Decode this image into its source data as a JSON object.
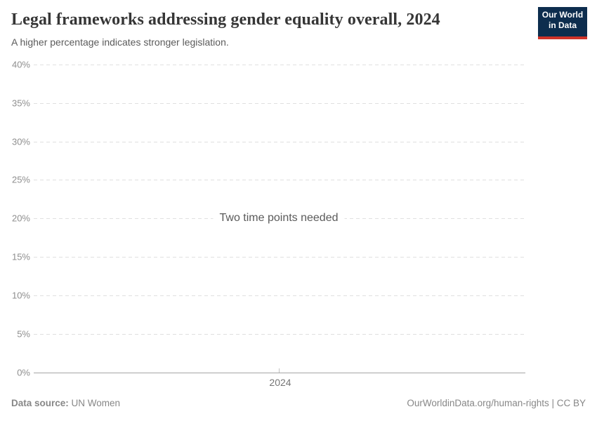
{
  "header": {
    "title": "Legal frameworks addressing gender equality overall, 2024",
    "subtitle": "A higher percentage indicates stronger legislation.",
    "logo": {
      "line1": "Our World",
      "line2": "in Data"
    }
  },
  "chart_data": {
    "type": "line",
    "title": "Legal frameworks addressing gender equality overall, 2024",
    "subtitle": "A higher percentage indicates stronger legislation.",
    "series": [],
    "empty_state_message": "Two time points needed",
    "x": [
      2024
    ],
    "xticks": [
      "2024"
    ],
    "yticks": [
      "40%",
      "35%",
      "30%",
      "25%",
      "20%",
      "15%",
      "10%",
      "5%",
      "0%"
    ],
    "ylim": [
      0,
      40
    ],
    "xlabel": "",
    "ylabel": "",
    "grid": "horizontal dashed gridlines, solid baseline at 0%",
    "legend": "none"
  },
  "footer": {
    "datasource_label": "Data source:",
    "datasource_value": "UN Women",
    "attribution": "OurWorldinData.org/human-rights | CC BY"
  },
  "colors": {
    "background": "#ffffff",
    "title_text": "#363636",
    "subtitle_text": "#5b5b5b",
    "tick_label_text": "#8f8f8f",
    "gridline": "#e0e0e0",
    "axis_line": "#a6a6a6",
    "message_text": "#5a5a5a",
    "footer_text": "#878787",
    "logo_navy": "#0d2d4e",
    "logo_red": "#cf3329"
  }
}
